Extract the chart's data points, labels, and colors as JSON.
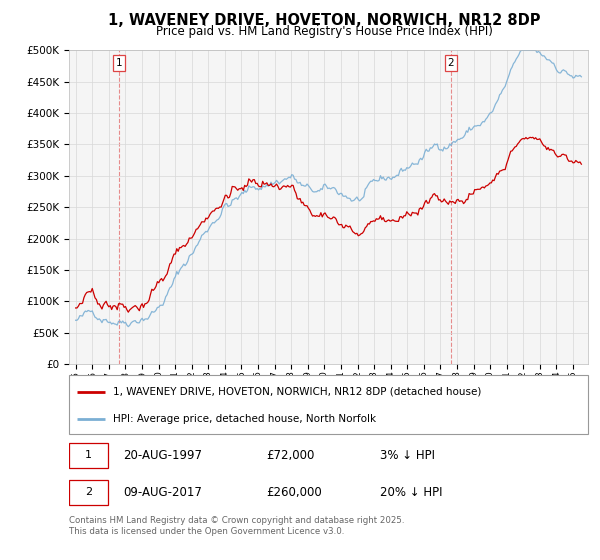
{
  "title": "1, WAVENEY DRIVE, HOVETON, NORWICH, NR12 8DP",
  "subtitle": "Price paid vs. HM Land Registry's House Price Index (HPI)",
  "ylim": [
    0,
    500000
  ],
  "yticks": [
    0,
    50000,
    100000,
    150000,
    200000,
    250000,
    300000,
    350000,
    400000,
    450000,
    500000
  ],
  "xlim_start": 1994.6,
  "xlim_end": 2025.9,
  "hpi_color": "#7bafd4",
  "price_color": "#cc0000",
  "vline_color": "#dd4444",
  "background_color": "#f5f5f5",
  "grid_color": "#d8d8d8",
  "sale1_year": 1997.622,
  "sale2_year": 2017.622,
  "legend_line1": "1, WAVENEY DRIVE, HOVETON, NORWICH, NR12 8DP (detached house)",
  "legend_line2": "HPI: Average price, detached house, North Norfolk",
  "footer": "Contains HM Land Registry data © Crown copyright and database right 2025.\nThis data is licensed under the Open Government Licence v3.0."
}
